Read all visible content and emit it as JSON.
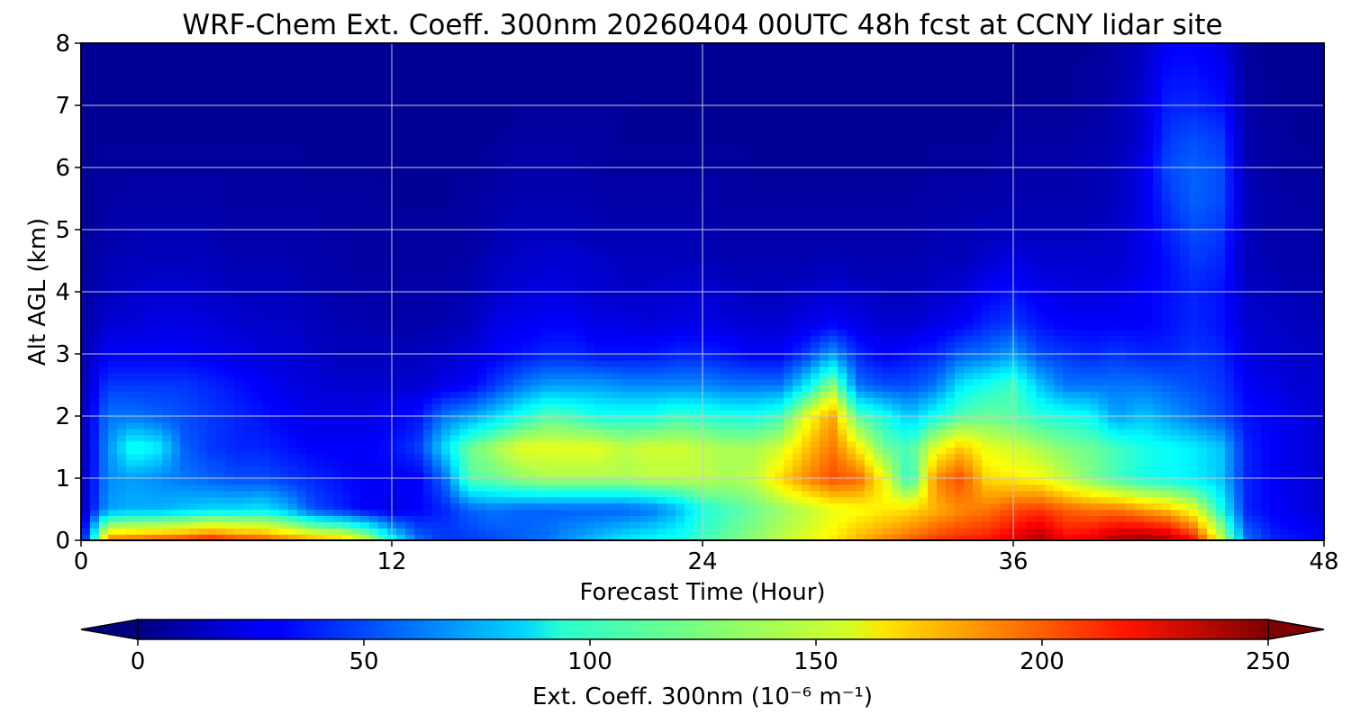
{
  "chart_data": {
    "type": "heatmap",
    "title": "WRF-Chem Ext. Coeff. 300nm  20260404 00UTC 48h fcst at CCNY lidar site",
    "xlabel": "Forecast Time (Hour)",
    "ylabel": "Alt AGL (km)",
    "xlim": [
      0,
      48
    ],
    "ylim": [
      0,
      8
    ],
    "x_ticks": [
      "0",
      "12",
      "24",
      "36",
      "48"
    ],
    "y_ticks": [
      "0",
      "1",
      "2",
      "3",
      "4",
      "5",
      "6",
      "7",
      "8"
    ],
    "grid": true,
    "colormap": "jet",
    "colorbar": {
      "orientation": "horizontal",
      "placement": "bottom",
      "label": "Ext. Coeff. 300nm  (10⁻⁶ m⁻¹)",
      "range": [
        0,
        250
      ],
      "extend": "both",
      "ticks": [
        "0",
        "50",
        "100",
        "150",
        "200",
        "250"
      ]
    },
    "x": [
      0,
      1,
      2,
      3,
      4,
      5,
      6,
      7,
      8,
      9,
      10,
      11,
      12,
      13,
      14,
      15,
      16,
      17,
      18,
      19,
      20,
      21,
      22,
      23,
      24,
      25,
      26,
      27,
      28,
      29,
      30,
      31,
      32,
      33,
      34,
      35,
      36,
      37,
      38,
      39,
      40,
      41,
      42,
      43,
      44,
      45,
      46,
      47,
      48
    ],
    "y": [
      0,
      0.5,
      1,
      1.5,
      2,
      2.5,
      3,
      3.5,
      4,
      4.5,
      5,
      5.5,
      6,
      6.5,
      7,
      7.5,
      8
    ],
    "z": [
      [
        20,
        190,
        195,
        200,
        205,
        215,
        205,
        200,
        190,
        180,
        175,
        150,
        100,
        60,
        45,
        45,
        50,
        55,
        60,
        70,
        80,
        90,
        95,
        100,
        110,
        120,
        130,
        140,
        150,
        160,
        175,
        185,
        195,
        205,
        210,
        215,
        225,
        240,
        220,
        225,
        240,
        245,
        240,
        215,
        150,
        60,
        40,
        35,
        30
      ],
      [
        10,
        70,
        75,
        75,
        80,
        85,
        85,
        90,
        75,
        50,
        40,
        30,
        25,
        30,
        40,
        55,
        60,
        55,
        55,
        55,
        55,
        55,
        60,
        75,
        100,
        110,
        120,
        130,
        140,
        150,
        155,
        160,
        165,
        175,
        185,
        190,
        200,
        205,
        195,
        190,
        190,
        180,
        170,
        150,
        100,
        40,
        30,
        25,
        20
      ],
      [
        10,
        65,
        70,
        65,
        60,
        55,
        50,
        50,
        45,
        40,
        35,
        30,
        30,
        30,
        55,
        115,
        120,
        130,
        135,
        135,
        135,
        135,
        140,
        140,
        140,
        135,
        140,
        165,
        185,
        200,
        195,
        155,
        100,
        185,
        200,
        165,
        160,
        155,
        140,
        125,
        110,
        100,
        95,
        90,
        80,
        40,
        30,
        25,
        20
      ],
      [
        10,
        65,
        100,
        90,
        55,
        45,
        40,
        40,
        35,
        30,
        30,
        30,
        35,
        45,
        85,
        120,
        135,
        150,
        150,
        150,
        150,
        140,
        145,
        145,
        140,
        135,
        135,
        145,
        170,
        190,
        160,
        120,
        110,
        150,
        170,
        150,
        145,
        135,
        125,
        120,
        110,
        100,
        95,
        90,
        80,
        40,
        30,
        25,
        20
      ],
      [
        10,
        60,
        60,
        55,
        50,
        45,
        40,
        35,
        30,
        25,
        25,
        25,
        30,
        35,
        60,
        70,
        85,
        100,
        115,
        110,
        100,
        100,
        100,
        110,
        105,
        100,
        100,
        110,
        150,
        180,
        115,
        100,
        80,
        100,
        115,
        120,
        115,
        105,
        100,
        95,
        70,
        80,
        70,
        60,
        50,
        35,
        30,
        25,
        20
      ],
      [
        10,
        45,
        45,
        45,
        45,
        40,
        35,
        30,
        25,
        22,
        20,
        20,
        20,
        20,
        25,
        30,
        45,
        60,
        70,
        70,
        70,
        65,
        65,
        65,
        65,
        60,
        60,
        60,
        90,
        130,
        60,
        50,
        50,
        60,
        90,
        100,
        110,
        80,
        60,
        60,
        60,
        60,
        55,
        50,
        45,
        30,
        25,
        20,
        20
      ],
      [
        10,
        30,
        30,
        30,
        30,
        28,
        25,
        22,
        20,
        18,
        15,
        15,
        15,
        15,
        18,
        22,
        30,
        35,
        40,
        40,
        35,
        35,
        35,
        40,
        40,
        35,
        30,
        30,
        45,
        70,
        40,
        30,
        35,
        40,
        55,
        60,
        70,
        50,
        45,
        40,
        45,
        40,
        40,
        45,
        40,
        25,
        20,
        18,
        18
      ],
      [
        8,
        20,
        22,
        25,
        25,
        22,
        20,
        18,
        18,
        15,
        12,
        12,
        10,
        10,
        12,
        15,
        25,
        28,
        30,
        30,
        25,
        25,
        22,
        25,
        25,
        22,
        20,
        20,
        25,
        30,
        25,
        20,
        20,
        25,
        30,
        40,
        45,
        35,
        30,
        30,
        30,
        30,
        35,
        40,
        35,
        20,
        18,
        15,
        15
      ],
      [
        8,
        15,
        18,
        20,
        20,
        18,
        15,
        15,
        15,
        12,
        10,
        10,
        10,
        10,
        10,
        12,
        18,
        22,
        25,
        22,
        20,
        18,
        18,
        20,
        20,
        18,
        15,
        15,
        18,
        20,
        18,
        15,
        15,
        18,
        20,
        30,
        35,
        28,
        25,
        22,
        25,
        30,
        35,
        40,
        35,
        18,
        15,
        12,
        12
      ],
      [
        6,
        12,
        15,
        15,
        15,
        15,
        12,
        12,
        12,
        10,
        10,
        8,
        8,
        8,
        8,
        10,
        15,
        18,
        20,
        20,
        18,
        15,
        15,
        15,
        15,
        12,
        12,
        12,
        12,
        15,
        12,
        12,
        12,
        15,
        15,
        20,
        25,
        20,
        20,
        20,
        20,
        25,
        35,
        45,
        40,
        15,
        12,
        10,
        10
      ],
      [
        6,
        10,
        12,
        12,
        12,
        12,
        10,
        10,
        10,
        10,
        8,
        8,
        8,
        8,
        8,
        8,
        12,
        15,
        15,
        15,
        12,
        12,
        12,
        12,
        12,
        10,
        10,
        10,
        10,
        10,
        10,
        10,
        10,
        12,
        12,
        15,
        15,
        15,
        15,
        15,
        18,
        25,
        40,
        50,
        45,
        15,
        10,
        10,
        8
      ],
      [
        5,
        8,
        10,
        10,
        10,
        10,
        8,
        8,
        8,
        8,
        8,
        8,
        6,
        6,
        6,
        8,
        10,
        12,
        12,
        12,
        10,
        10,
        10,
        10,
        10,
        8,
        8,
        8,
        8,
        8,
        8,
        8,
        8,
        10,
        10,
        10,
        12,
        12,
        12,
        12,
        15,
        25,
        45,
        55,
        50,
        15,
        10,
        8,
        8
      ],
      [
        5,
        8,
        8,
        8,
        8,
        8,
        8,
        8,
        8,
        6,
        6,
        6,
        6,
        6,
        6,
        6,
        8,
        10,
        10,
        10,
        8,
        8,
        8,
        8,
        8,
        8,
        6,
        6,
        6,
        6,
        6,
        6,
        6,
        8,
        8,
        8,
        10,
        10,
        10,
        12,
        15,
        25,
        50,
        55,
        50,
        12,
        8,
        8,
        6
      ],
      [
        5,
        6,
        6,
        6,
        6,
        6,
        6,
        6,
        6,
        6,
        6,
        5,
        5,
        5,
        5,
        6,
        6,
        8,
        8,
        8,
        8,
        6,
        6,
        6,
        6,
        6,
        6,
        5,
        5,
        5,
        5,
        5,
        5,
        6,
        6,
        6,
        8,
        8,
        8,
        10,
        12,
        20,
        45,
        50,
        45,
        12,
        8,
        6,
        6
      ],
      [
        5,
        5,
        5,
        5,
        5,
        5,
        5,
        5,
        5,
        5,
        5,
        5,
        5,
        5,
        5,
        5,
        5,
        6,
        6,
        6,
        6,
        6,
        5,
        5,
        5,
        5,
        5,
        5,
        5,
        5,
        5,
        5,
        5,
        5,
        5,
        5,
        6,
        6,
        6,
        8,
        12,
        20,
        40,
        40,
        35,
        10,
        6,
        6,
        5
      ],
      [
        5,
        5,
        5,
        5,
        5,
        5,
        5,
        5,
        5,
        5,
        5,
        5,
        5,
        5,
        5,
        5,
        5,
        5,
        5,
        5,
        5,
        5,
        5,
        5,
        5,
        5,
        5,
        5,
        5,
        5,
        5,
        5,
        5,
        5,
        5,
        5,
        5,
        5,
        6,
        8,
        10,
        18,
        35,
        35,
        30,
        8,
        6,
        5,
        5
      ],
      [
        5,
        5,
        5,
        5,
        5,
        5,
        5,
        5,
        5,
        5,
        5,
        5,
        5,
        5,
        5,
        5,
        5,
        5,
        5,
        5,
        5,
        5,
        5,
        5,
        5,
        5,
        5,
        5,
        5,
        5,
        5,
        5,
        5,
        5,
        5,
        5,
        5,
        5,
        5,
        6,
        10,
        15,
        30,
        30,
        25,
        8,
        5,
        5,
        5
      ]
    ]
  }
}
